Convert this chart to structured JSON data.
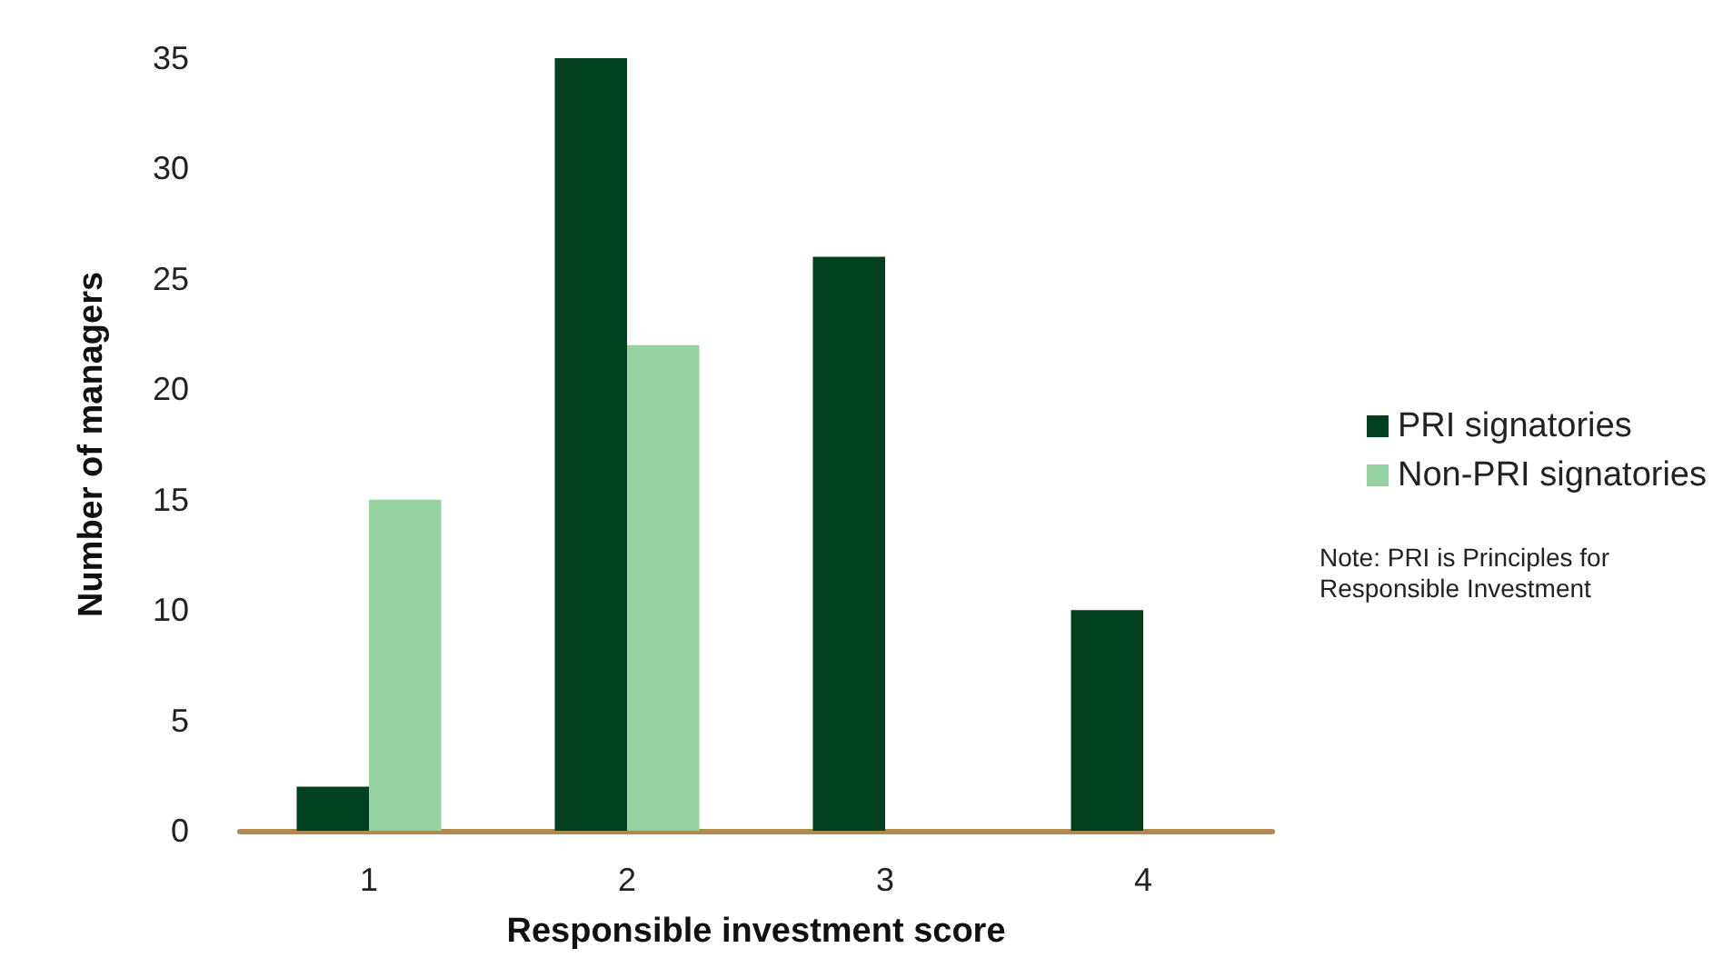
{
  "chart_data": {
    "type": "bar",
    "xlabel": "Responsible investment score",
    "ylabel": "Number of managers",
    "categories": [
      "1",
      "2",
      "3",
      "4"
    ],
    "series": [
      {
        "name": "PRI signatories",
        "color": "#004020",
        "values": [
          2,
          35,
          26,
          10
        ]
      },
      {
        "name": "Non-PRI signatories",
        "color": "#95d1a1",
        "values": [
          15,
          22,
          0,
          0
        ]
      }
    ],
    "ylim": [
      0,
      35
    ],
    "yticks": [
      0,
      5,
      10,
      15,
      20,
      25,
      30,
      35
    ],
    "grid": false,
    "legend": "right",
    "annotations": [
      "Note: PRI is Principles for\nResponsible Investment"
    ]
  }
}
